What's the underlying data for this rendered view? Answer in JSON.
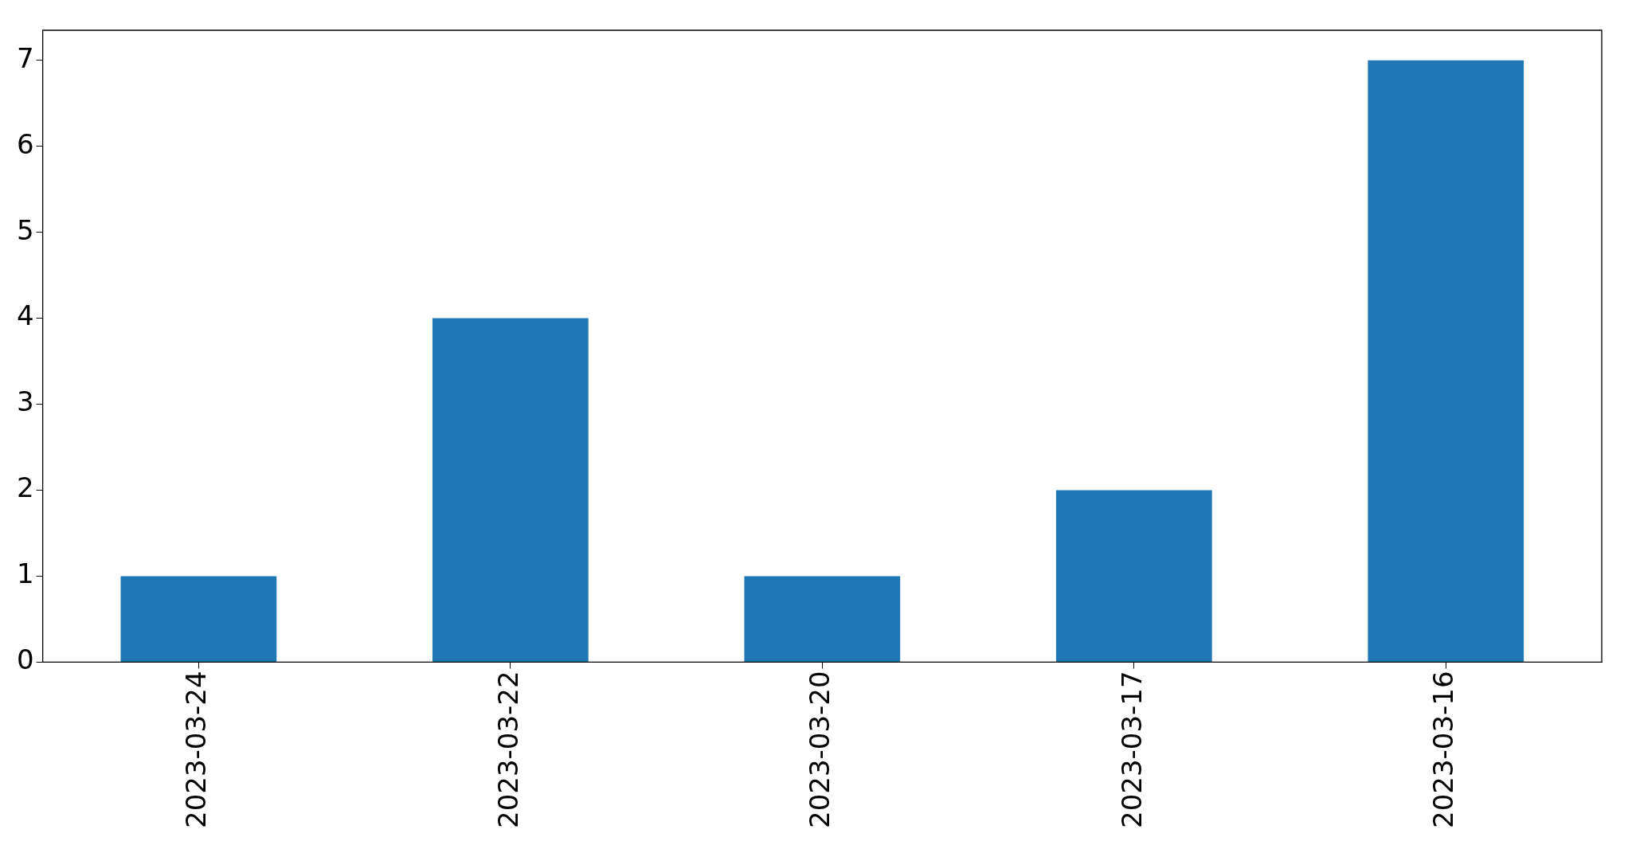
{
  "chart_data": {
    "type": "bar",
    "categories": [
      "2023-03-24",
      "2023-03-22",
      "2023-03-20",
      "2023-03-17",
      "2023-03-16"
    ],
    "values": [
      1,
      4,
      1,
      2,
      7
    ],
    "color": "#1f77b4",
    "ylim": [
      0,
      7.35
    ],
    "yticks": [
      0,
      1,
      2,
      3,
      4,
      5,
      6,
      7
    ],
    "grid": false,
    "legend": false
  }
}
